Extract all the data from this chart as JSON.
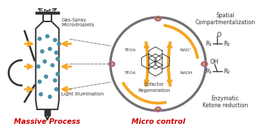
{
  "bg_color": "#f5f5f5",
  "title_left": "Massive Process",
  "title_right": "Micro control",
  "label_bottle_top": "Gas-Spray\nMicrodroplets",
  "label_bottle_bottom": "Light Illumination",
  "label_circle_center1": "Cofactor",
  "label_circle_center2": "Regeneration",
  "label_teoa_left": "TEOA",
  "label_teoa_right": "TEOA",
  "label_nad": "NAD⁺",
  "label_nadh": "NADH",
  "label_spatial": "Spatial\nCompartmentalization",
  "label_enzymatic": "Enzymatic\nKetone reduction",
  "red_color": "#cc0000",
  "orange_color": "#f5a623",
  "dark_gray": "#333333",
  "circle_gray": "#707070",
  "dot_color": "#4a8fa8",
  "enzyme_colors": [
    "#cc2222",
    "#ffaa00",
    "#44aa44",
    "#dd66aa"
  ],
  "arrow_orange": "#f5a623"
}
